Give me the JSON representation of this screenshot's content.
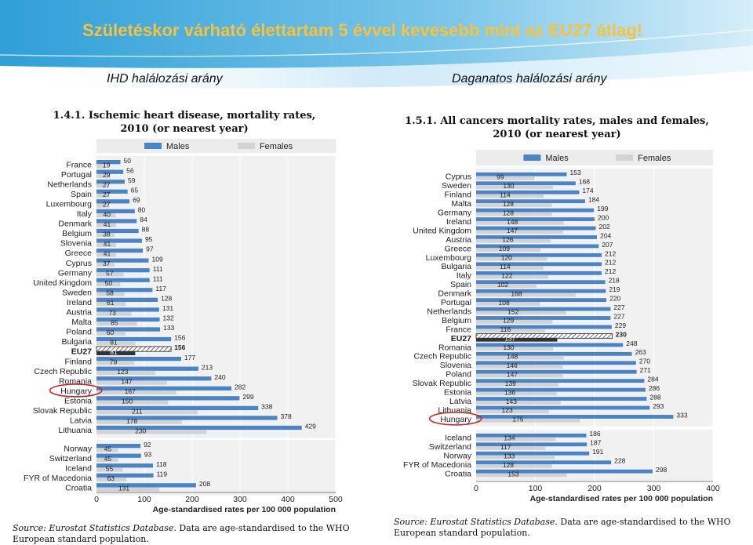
{
  "slide": {
    "title": "Születéskor várható élettartam 5 évvel kevesebb mint  az EU27 átlag!",
    "subtitle_left": "IHD halálozási arány",
    "subtitle_right": "Daganatos halálozási arány"
  },
  "colors": {
    "males": "#4a84c8",
    "females": "#d3d3d3",
    "highlight": "#cc2222",
    "title": "#f6c43a"
  },
  "chart_data": [
    {
      "type": "bar",
      "orientation": "horizontal",
      "title_line1": "1.4.1. Ischemic heart disease, mortality rates,",
      "title_line2": "2010 (or nearest year)",
      "legend": {
        "males": "Males",
        "females": "Females",
        "placement": "top"
      },
      "xlabel": "Age-standardised rates per 100 000 population",
      "xlim": [
        0,
        500
      ],
      "ticks": [
        0,
        100,
        200,
        300,
        400,
        500
      ],
      "average_label": "EU27",
      "highlighted": "Hungary",
      "groups": [
        {
          "categories": [
            "France",
            "Portugal",
            "Netherlands",
            "Spain",
            "Luxembourg",
            "Italy",
            "Denmark",
            "Belgium",
            "Slovenia",
            "Greece",
            "Cyprus",
            "Germany",
            "United Kingdom",
            "Sweden",
            "Ireland",
            "Austria",
            "Malta",
            "Poland",
            "Bulgaria",
            "EU27",
            "Finland",
            "Czech Republic",
            "Romania",
            "Hungary",
            "Estonia",
            "Slovak Republic",
            "Latvia",
            "Lithuania"
          ],
          "males": [
            50,
            56,
            59,
            65,
            69,
            80,
            84,
            88,
            95,
            97,
            109,
            111,
            111,
            117,
            128,
            131,
            132,
            133,
            156,
            156,
            177,
            213,
            240,
            282,
            299,
            338,
            378,
            429
          ],
          "females": [
            19,
            29,
            27,
            27,
            27,
            40,
            41,
            38,
            41,
            41,
            37,
            57,
            50,
            58,
            61,
            73,
            85,
            60,
            81,
            81,
            79,
            123,
            147,
            167,
            150,
            211,
            178,
            230
          ]
        },
        {
          "categories": [
            "Norway",
            "Switzerland",
            "Iceland",
            "FYR of Macedonia",
            "Croatia"
          ],
          "males": [
            92,
            93,
            118,
            119,
            208
          ],
          "females": [
            45,
            45,
            55,
            63,
            131
          ]
        }
      ]
    },
    {
      "type": "bar",
      "orientation": "horizontal",
      "title_line1": "1.5.1. All cancers mortality rates, males and females,",
      "title_line2": "2010 (or nearest year)",
      "legend": {
        "males": "Males",
        "females": "Females",
        "placement": "top"
      },
      "xlabel": "Age-standardised rates per 100 000 population",
      "xlim": [
        0,
        400
      ],
      "ticks": [
        0,
        100,
        200,
        300,
        400
      ],
      "average_label": "EU27",
      "highlighted": "Hungary",
      "groups": [
        {
          "categories": [
            "Cyprus",
            "Sweden",
            "Finland",
            "Malta",
            "Germany",
            "Ireland",
            "United Kingdom",
            "Austria",
            "Greece",
            "Luxembourg",
            "Bulgaria",
            "Italy",
            "Spain",
            "Denmark",
            "Portugal",
            "Netherlands",
            "Belgium",
            "France",
            "EU27",
            "Romania",
            "Czech Republic",
            "Slovenia",
            "Poland",
            "Slovak Republic",
            "Estonia",
            "Latvia",
            "Lithuania",
            "Hungary"
          ],
          "males": [
            153,
            168,
            174,
            184,
            199,
            200,
            202,
            204,
            207,
            212,
            212,
            212,
            218,
            219,
            220,
            227,
            227,
            229,
            230,
            248,
            263,
            270,
            271,
            284,
            286,
            288,
            293,
            333
          ],
          "females": [
            99,
            130,
            114,
            128,
            128,
            148,
            147,
            126,
            109,
            120,
            114,
            122,
            102,
            168,
            108,
            152,
            129,
            116,
            137,
            130,
            148,
            146,
            147,
            139,
            136,
            143,
            123,
            175
          ]
        },
        {
          "categories": [
            "Iceland",
            "Switzerland",
            "Norway",
            "FYR of Macedonia",
            "Croatia"
          ],
          "males": [
            186,
            187,
            191,
            228,
            298
          ],
          "females": [
            134,
            117,
            133,
            128,
            153
          ]
        }
      ]
    }
  ],
  "sources": {
    "left_label": "Source:",
    "left_italic": "Eurostat Statistics Database.",
    "left_rest": "Data are age-standardised to the WHO European standard population.",
    "right_label": "Source:",
    "right_italic": "Eurostat Statistics Database.",
    "right_rest": "Data are age-standardised to the WHO European standard population."
  }
}
